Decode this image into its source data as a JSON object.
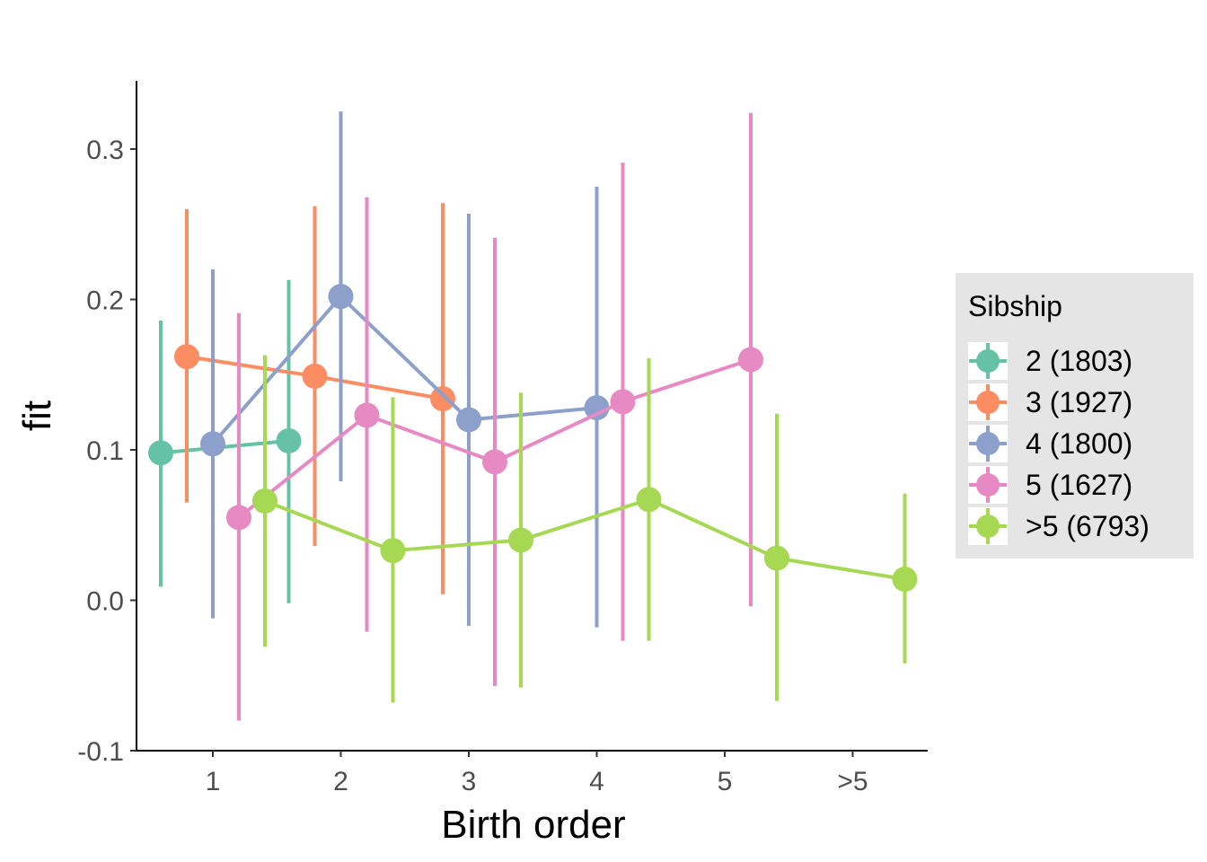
{
  "chart_data": {
    "type": "line",
    "title": "",
    "xlabel": "Birth order",
    "ylabel": "fit",
    "categories": [
      "1",
      "2",
      "3",
      "4",
      "5",
      ">5"
    ],
    "ylim": [
      -0.1,
      0.34
    ],
    "yticks": [
      -0.1,
      0.0,
      0.1,
      0.2,
      0.3
    ],
    "ytick_labels": [
      "-0.1",
      "0.0",
      "0.1",
      "0.2",
      "0.3"
    ],
    "grid": false,
    "legend": {
      "title": "Sibship",
      "position": "right"
    },
    "series": [
      {
        "name": "2 (1803)",
        "color": "#66c2a5",
        "values": [
          0.098,
          0.106,
          null,
          null,
          null,
          null
        ],
        "lower": [
          0.009,
          -0.002,
          null,
          null,
          null,
          null
        ],
        "upper": [
          0.186,
          0.213,
          null,
          null,
          null,
          null
        ]
      },
      {
        "name": "3 (1927)",
        "color": "#fc8d62",
        "values": [
          0.162,
          0.149,
          0.134,
          null,
          null,
          null
        ],
        "lower": [
          0.065,
          0.036,
          0.004,
          null,
          null,
          null
        ],
        "upper": [
          0.26,
          0.262,
          0.264,
          null,
          null,
          null
        ]
      },
      {
        "name": "4 (1800)",
        "color": "#8da0cb",
        "values": [
          0.104,
          0.202,
          0.12,
          0.128,
          null,
          null
        ],
        "lower": [
          -0.012,
          0.079,
          -0.017,
          -0.018,
          null,
          null
        ],
        "upper": [
          0.22,
          0.325,
          0.257,
          0.275,
          null,
          null
        ]
      },
      {
        "name": "5 (1627)",
        "color": "#e78ac3",
        "values": [
          0.055,
          0.123,
          0.092,
          0.132,
          0.16,
          null
        ],
        "lower": [
          -0.08,
          -0.021,
          -0.057,
          -0.027,
          -0.004,
          null
        ],
        "upper": [
          0.191,
          0.268,
          0.241,
          0.291,
          0.324,
          null
        ]
      },
      {
        "name": ">5 (6793)",
        "color": "#a6d854",
        "values": [
          0.066,
          0.033,
          0.04,
          0.067,
          0.028,
          0.014
        ],
        "lower": [
          -0.031,
          -0.068,
          -0.058,
          -0.027,
          -0.067,
          -0.042
        ],
        "upper": [
          0.163,
          0.135,
          0.138,
          0.161,
          0.124,
          0.071
        ]
      }
    ]
  }
}
